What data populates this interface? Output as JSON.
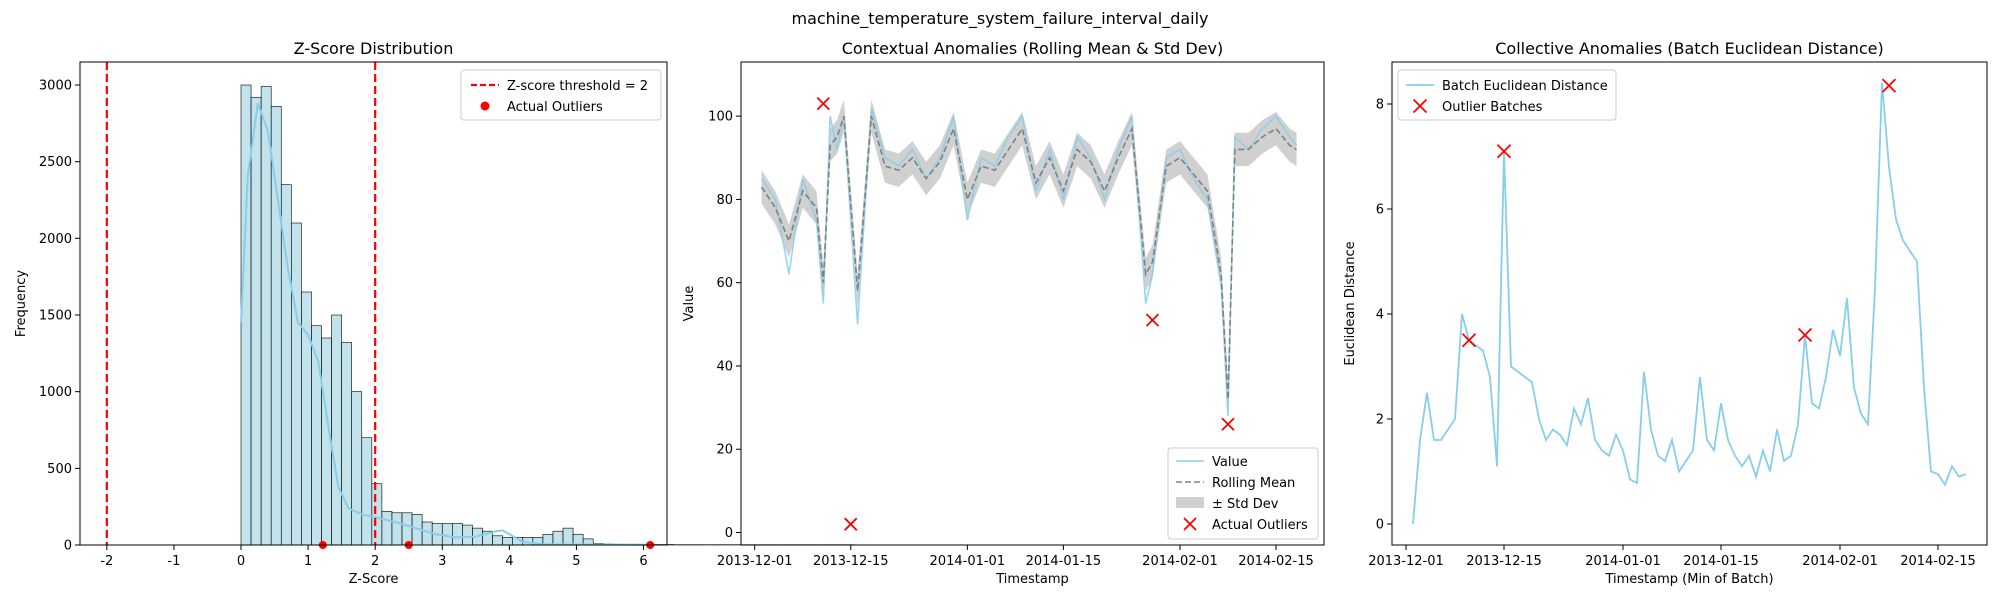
{
  "figure": {
    "suptitle": "machine_temperature_system_failure_interval_daily"
  },
  "chart_data": [
    {
      "type": "bar",
      "title": "Z-Score Distribution",
      "xlabel": "Z-Score",
      "ylabel": "Frequency",
      "xlim": [
        -2.4,
        6.35
      ],
      "ylim": [
        0,
        3150
      ],
      "xticks": [
        -2,
        -1,
        0,
        1,
        2,
        3,
        4,
        5,
        6
      ],
      "yticks": [
        0,
        500,
        1000,
        1500,
        2000,
        2500,
        3000
      ],
      "bin_width": 0.15,
      "bins_start": 0,
      "values": [
        3000,
        2920,
        2990,
        2860,
        2350,
        2100,
        1650,
        1430,
        1350,
        1500,
        1320,
        1000,
        700,
        400,
        220,
        210,
        210,
        200,
        150,
        140,
        140,
        140,
        130,
        110,
        90,
        60,
        50,
        50,
        50,
        50,
        70,
        90,
        110,
        70,
        40,
        10,
        8,
        5,
        4,
        3,
        3,
        3,
        3,
        2,
        2,
        2,
        2,
        2,
        2,
        2,
        2,
        2,
        2,
        2,
        2,
        2,
        2,
        2,
        2,
        2,
        2
      ],
      "kde": [
        [
          0,
          1450
        ],
        [
          0.1,
          2400
        ],
        [
          0.25,
          2880
        ],
        [
          0.4,
          2700
        ],
        [
          0.55,
          2250
        ],
        [
          0.7,
          1800
        ],
        [
          0.85,
          1450
        ],
        [
          1.0,
          1370
        ],
        [
          1.15,
          1200
        ],
        [
          1.3,
          780
        ],
        [
          1.45,
          380
        ],
        [
          1.6,
          240
        ],
        [
          1.8,
          200
        ],
        [
          2.0,
          180
        ],
        [
          2.3,
          150
        ],
        [
          2.6,
          110
        ],
        [
          2.9,
          70
        ],
        [
          3.2,
          50
        ],
        [
          3.5,
          55
        ],
        [
          3.8,
          90
        ],
        [
          3.9,
          95
        ],
        [
          4.0,
          70
        ],
        [
          4.2,
          20
        ],
        [
          4.5,
          5
        ],
        [
          5.0,
          3
        ],
        [
          6.1,
          2
        ]
      ],
      "threshold": {
        "label": "Z-score threshold = 2",
        "values": [
          -2,
          2
        ]
      },
      "outliers": {
        "label": "Actual Outliers",
        "x": [
          1.22,
          2.5,
          6.1
        ],
        "y": [
          0,
          0,
          0
        ]
      },
      "colors": {
        "bar": "#add8e6",
        "kde": "#87ceeb",
        "threshold": "#ff0000",
        "outlier": "#ff0000"
      },
      "legend": "top-right"
    },
    {
      "type": "line",
      "title": "Contextual Anomalies (Rolling Mean & Std Dev)",
      "xlabel": "Timestamp",
      "ylabel": "Value",
      "xlim": [
        "2013-11-29",
        "2014-02-22"
      ],
      "ylim": [
        -3,
        113
      ],
      "xticks": [
        "2013-12-01",
        "2013-12-15",
        "2014-01-01",
        "2014-01-15",
        "2014-02-01",
        "2014-02-15"
      ],
      "yticks": [
        0,
        20,
        40,
        60,
        80,
        100
      ],
      "x": [
        "2013-12-02",
        "2013-12-04",
        "2013-12-06",
        "2013-12-08",
        "2013-12-10",
        "2013-12-11",
        "2013-12-12",
        "2013-12-13",
        "2013-12-14",
        "2013-12-16",
        "2013-12-18",
        "2013-12-20",
        "2013-12-22",
        "2013-12-24",
        "2013-12-26",
        "2013-12-28",
        "2013-12-30",
        "2014-01-01",
        "2014-01-03",
        "2014-01-05",
        "2014-01-07",
        "2014-01-09",
        "2014-01-11",
        "2014-01-13",
        "2014-01-15",
        "2014-01-17",
        "2014-01-19",
        "2014-01-21",
        "2014-01-23",
        "2014-01-25",
        "2014-01-27",
        "2014-01-28",
        "2014-01-30",
        "2014-02-01",
        "2014-02-03",
        "2014-02-05",
        "2014-02-07",
        "2014-02-08",
        "2014-02-09",
        "2014-02-11",
        "2014-02-13",
        "2014-02-15",
        "2014-02-17",
        "2014-02-18"
      ],
      "series": [
        {
          "name": "Value",
          "values": [
            85,
            80,
            62,
            85,
            75,
            55,
            100,
            92,
            100,
            50,
            102,
            90,
            88,
            92,
            85,
            90,
            100,
            75,
            90,
            88,
            95,
            100,
            82,
            92,
            80,
            95,
            90,
            80,
            92,
            100,
            55,
            62,
            90,
            92,
            85,
            80,
            60,
            28,
            95,
            92,
            97,
            100,
            95,
            93
          ]
        },
        {
          "name": "Rolling Mean",
          "values": [
            83,
            78,
            70,
            82,
            78,
            60,
            93,
            95,
            100,
            58,
            100,
            88,
            87,
            90,
            85,
            89,
            97,
            80,
            88,
            87,
            92,
            97,
            84,
            90,
            82,
            92,
            89,
            82,
            90,
            97,
            62,
            65,
            88,
            90,
            86,
            82,
            62,
            32,
            92,
            92,
            95,
            97,
            93,
            92
          ]
        }
      ],
      "std_band": {
        "name": "± Std Dev",
        "half_width": 4
      },
      "outliers": {
        "name": "Actual Outliers",
        "x": [
          "2013-12-11",
          "2013-12-15",
          "2014-01-28",
          "2014-02-08"
        ],
        "y": [
          103,
          2,
          51,
          26
        ]
      },
      "colors": {
        "value": "#87ceeb",
        "mean": "#808080",
        "band": "#a9a9a9",
        "outlier": "#ff0000"
      },
      "legend": "lower-right"
    },
    {
      "type": "line",
      "title": "Collective Anomalies (Batch Euclidean Distance)",
      "xlabel": "Timestamp (Min of Batch)",
      "ylabel": "Euclidean Distance",
      "xlim": [
        "2013-11-29",
        "2014-02-22"
      ],
      "ylim": [
        -0.4,
        8.8
      ],
      "xticks": [
        "2013-12-01",
        "2013-12-15",
        "2014-01-01",
        "2014-01-15",
        "2014-02-01",
        "2014-02-15"
      ],
      "yticks": [
        0,
        2,
        4,
        6,
        8
      ],
      "x": [
        "2013-12-02",
        "2013-12-03",
        "2013-12-04",
        "2013-12-05",
        "2013-12-06",
        "2013-12-08",
        "2013-12-09",
        "2013-12-10",
        "2013-12-12",
        "2013-12-13",
        "2013-12-14",
        "2013-12-15",
        "2013-12-16",
        "2013-12-19",
        "2013-12-20",
        "2013-12-21",
        "2013-12-22",
        "2013-12-23",
        "2013-12-24",
        "2013-12-25",
        "2013-12-26",
        "2013-12-27",
        "2013-12-28",
        "2013-12-29",
        "2013-12-30",
        "2013-12-31",
        "2014-01-01",
        "2014-01-02",
        "2014-01-03",
        "2014-01-04",
        "2014-01-05",
        "2014-01-06",
        "2014-01-07",
        "2014-01-08",
        "2014-01-09",
        "2014-01-10",
        "2014-01-11",
        "2014-01-12",
        "2014-01-13",
        "2014-01-14",
        "2014-01-15",
        "2014-01-16",
        "2014-01-17",
        "2014-01-18",
        "2014-01-19",
        "2014-01-20",
        "2014-01-21",
        "2014-01-22",
        "2014-01-23",
        "2014-01-24",
        "2014-01-25",
        "2014-01-26",
        "2014-01-27",
        "2014-01-28",
        "2014-01-29",
        "2014-01-30",
        "2014-01-31",
        "2014-02-01",
        "2014-02-02",
        "2014-02-03",
        "2014-02-04",
        "2014-02-05",
        "2014-02-06",
        "2014-02-07",
        "2014-02-08",
        "2014-02-09",
        "2014-02-10",
        "2014-02-11",
        "2014-02-12",
        "2014-02-13",
        "2014-02-14",
        "2014-02-15",
        "2014-02-16",
        "2014-02-17",
        "2014-02-18",
        "2014-02-19"
      ],
      "series": [
        {
          "name": "Batch Euclidean Distance",
          "values": [
            0.0,
            1.6,
            2.5,
            1.6,
            1.6,
            2.0,
            4.0,
            3.5,
            3.3,
            2.8,
            1.1,
            7.1,
            3.0,
            2.7,
            2.0,
            1.6,
            1.8,
            1.7,
            1.5,
            2.2,
            1.9,
            2.4,
            1.6,
            1.4,
            1.3,
            1.7,
            1.4,
            0.85,
            0.78,
            2.9,
            1.8,
            1.3,
            1.2,
            1.6,
            1.0,
            1.2,
            1.4,
            2.8,
            1.6,
            1.4,
            2.3,
            1.6,
            1.3,
            1.1,
            1.3,
            0.9,
            1.4,
            1.0,
            1.8,
            1.2,
            1.3,
            1.9,
            3.6,
            2.3,
            2.2,
            2.8,
            3.7,
            3.2,
            4.3,
            2.6,
            2.1,
            1.9,
            4.5,
            8.4,
            6.8,
            5.8,
            5.4,
            5.2,
            5.0,
            2.6,
            1.0,
            0.95,
            0.75,
            1.1,
            0.9,
            0.95
          ]
        }
      ],
      "outliers": {
        "name": "Outlier Batches",
        "x": [
          "2013-12-10",
          "2013-12-15",
          "2014-01-27",
          "2014-02-08"
        ],
        "y": [
          3.5,
          7.1,
          3.6,
          8.35
        ]
      },
      "colors": {
        "line": "#87ceeb",
        "outlier": "#ff0000"
      },
      "legend": "top-left"
    }
  ]
}
